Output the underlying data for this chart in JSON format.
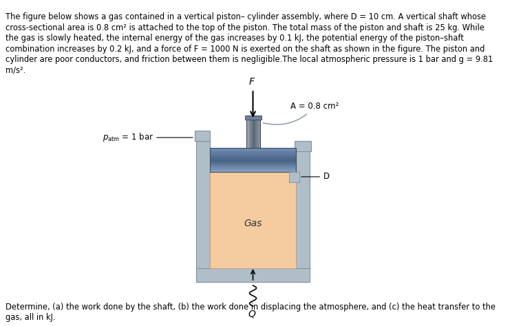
{
  "title_text_line1": "The figure below shows a gas contained in a vertical piston– cylinder assembly, where D = 10 cm. A vertical shaft whose",
  "title_text_line2": "cross-sectional area is 0.8 cm² is attached to the top of the piston. The total mass of the piston and shaft is 25 kg. While",
  "title_text_line3": "the gas is slowly heated, the internal energy of the gas increases by 0.1 kJ, the potential energy of the piston–shaft",
  "title_text_line4": "combination increases by 0.2 kJ, and a force of F = 1000 N is exerted on the shaft as shown in the figure. The piston and",
  "title_text_line5": "cylinder are poor conductors, and friction between them is negligible.The local atmospheric pressure is 1 bar and g = 9.81",
  "title_text_line6": "m/s².",
  "bottom_text_line1": "Determine, (a) the work done by the shaft, (b) the work done in displacing the atmosphere, and (c) the heat transfer to the",
  "bottom_text_line2": "gas, all in kJ.",
  "bg_color": "#ffffff",
  "wall_color": "#b0bec8",
  "wall_edge_color": "#8090a0",
  "piston_color_top": "#4a6080",
  "piston_color_bot": "#7090b0",
  "gas_color": "#f5cba0",
  "shaft_color": "#8090a0",
  "shaft_dark": "#5a6a7a",
  "text_color": "#000000",
  "header_color": "#cc0000",
  "arrow_color": "#000000",
  "annot_color": "#5a6a8a"
}
